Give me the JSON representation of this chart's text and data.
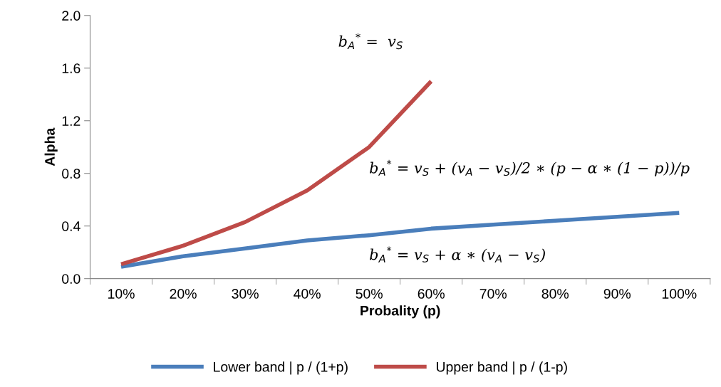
{
  "chart_data": {
    "type": "line",
    "xlabel": "Probality (p)",
    "ylabel": "Alpha",
    "categories": [
      "10%",
      "20%",
      "30%",
      "40%",
      "50%",
      "60%",
      "70%",
      "80%",
      "90%",
      "100%"
    ],
    "series": [
      {
        "name": "Lower band | p / (1+p)",
        "color": "#4a7ebb",
        "values": [
          0.09,
          0.17,
          0.23,
          0.29,
          0.33,
          0.38,
          0.41,
          0.44,
          0.47,
          0.5
        ]
      },
      {
        "name": "Upper band | p / (1-p)",
        "color": "#be4b48",
        "values": [
          0.11,
          0.25,
          0.43,
          0.67,
          1.0,
          1.5,
          null,
          null,
          null,
          null
        ]
      }
    ],
    "ylim": [
      0,
      2
    ],
    "yticks": [
      {
        "value": 0,
        "label": "0.0"
      },
      {
        "value": 0.4,
        "label": "0.4"
      },
      {
        "value": 0.8,
        "label": "0.8"
      },
      {
        "value": 1.2,
        "label": "1.2"
      },
      {
        "value": 1.6,
        "label": "1.6"
      },
      {
        "value": 2,
        "label": "2.0"
      }
    ],
    "annotations": [
      "b$_{A}$$^{*}$ =  v$_{S}$",
      "b$_{A}$$^{*}$ = v$_{S}$ + (v$_{A}$ − v$_{S}$)/2 ∗ (p − α ∗ (1 − p))/p",
      "b$_{A}$$^{*}$ = v$_{S}$ + α ∗ (v$_{A}$ − v$_{S}$)"
    ],
    "grid": false,
    "legend": "bottom",
    "marker": "none",
    "line_style": "solid"
  }
}
